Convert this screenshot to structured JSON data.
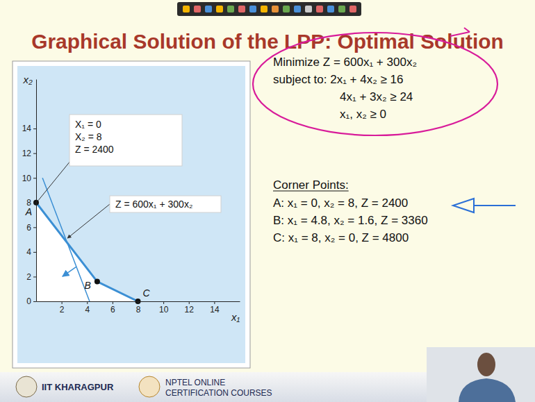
{
  "slide": {
    "title": "Graphical Solution of the LPP: Optimal Solution",
    "problem": [
      "Minimize Z = 600x₁ + 300x₂",
      "subject to: 2x₁ + 4x₂ ≥ 16",
      "4x₁ + 3x₂ ≥ 24",
      "x₁, x₂ ≥ 0"
    ],
    "corner_points_heading": "Corner Points:",
    "corner_points": [
      "A: x₁ = 0, x₂ = 8, Z = 2400",
      "B: x₁ = 4.8, x₂ = 1.6, Z = 3360",
      "C: x₁ = 8, x₂ = 0, Z = 4800"
    ],
    "footer": {
      "institute": "IIT KHARAGPUR",
      "program": [
        "NPTEL ONLINE",
        "CERTIFICATION COURSES"
      ]
    }
  },
  "chart_data": {
    "type": "line",
    "x_label": "x₁",
    "y_label": "x₂",
    "xlim": [
      0,
      16
    ],
    "ylim": [
      0,
      18
    ],
    "xticks": [
      2,
      4,
      6,
      8,
      10,
      12,
      14
    ],
    "yticks": [
      0,
      2,
      4,
      6,
      8,
      10,
      12,
      14
    ],
    "grid": false,
    "series": [
      {
        "x": [
          0,
          4.8,
          8
        ],
        "values": [
          8,
          1.6,
          0
        ],
        "labels": [
          "A",
          "B",
          "C"
        ],
        "color": "#3b8fd4",
        "marker": "circle",
        "line_style": "solid"
      },
      {
        "x": [
          0.5,
          4.2
        ],
        "values": [
          10,
          0
        ],
        "color": "#3b8fd4",
        "marker": "none",
        "line_style": "solid"
      }
    ],
    "annotations": [
      {
        "lines": [
          "X₁ = 0",
          "X₂ = 8",
          "Z = 2400"
        ]
      },
      {
        "lines": [
          "Z = 600x₁ + 300x₂"
        ]
      }
    ]
  }
}
